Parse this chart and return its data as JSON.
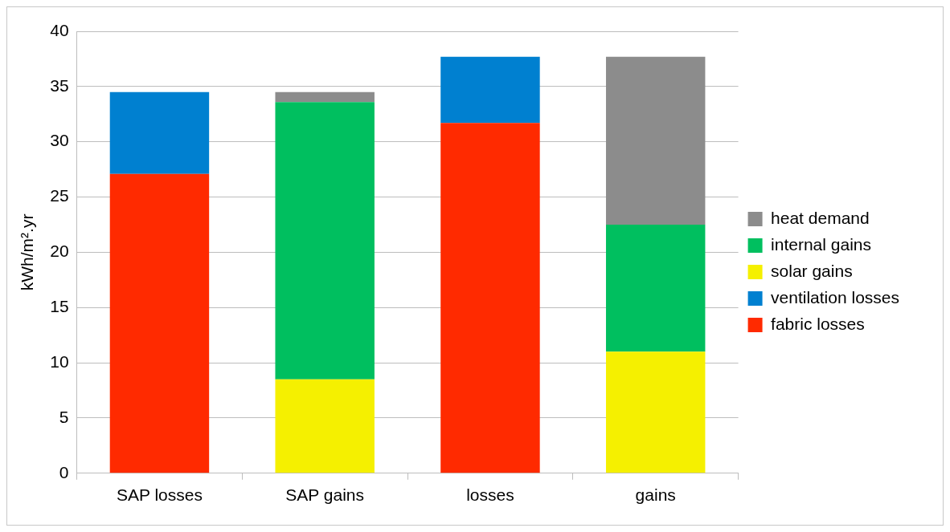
{
  "chart_data": {
    "type": "bar",
    "stacked": true,
    "ylabel": "kWh/m².yr",
    "categories": [
      "SAP losses",
      "SAP gains",
      "losses",
      "gains"
    ],
    "series": [
      {
        "name": "fabric losses",
        "color": "#ff2a00",
        "values": [
          27.1,
          null,
          31.7,
          null
        ]
      },
      {
        "name": "ventilation losses",
        "color": "#0080d0",
        "values": [
          7.4,
          null,
          6.0,
          null
        ]
      },
      {
        "name": "solar gains",
        "color": "#f5f000",
        "values": [
          null,
          8.5,
          null,
          11.0
        ]
      },
      {
        "name": "internal gains",
        "color": "#00bf5f",
        "values": [
          null,
          25.1,
          null,
          11.5
        ]
      },
      {
        "name": "heat demand",
        "color": "#8c8c8c",
        "values": [
          null,
          0.9,
          null,
          15.2
        ]
      }
    ],
    "ylim": [
      0,
      40
    ],
    "yticks": [
      0,
      5,
      10,
      15,
      20,
      25,
      30,
      35,
      40
    ],
    "grid": "y",
    "legend": "right"
  }
}
